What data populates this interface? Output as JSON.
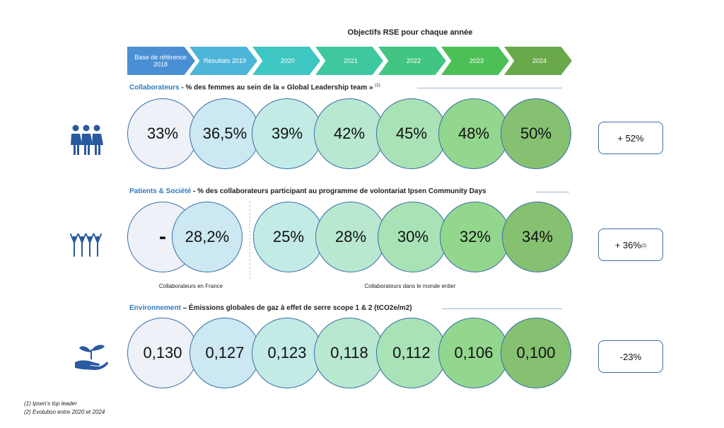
{
  "header": {
    "title": "Objectifs RSE pour chaque année",
    "chevrons": [
      {
        "label": "Base de référence 2018",
        "color": "#4a8fd4"
      },
      {
        "label": "Résultats 2019",
        "color": "#4cb5d8"
      },
      {
        "label": "2020",
        "color": "#3ec6c2"
      },
      {
        "label": "2021",
        "color": "#3fc79f"
      },
      {
        "label": "2022",
        "color": "#42c581"
      },
      {
        "label": "2023",
        "color": "#4cbf57"
      },
      {
        "label": "2024",
        "color": "#6aa94b"
      }
    ]
  },
  "sections": [
    {
      "category": "Collaborateurs",
      "title": " - % des femmes au sein de la « Global Leadership team » ",
      "note": "(1)",
      "icon": "women-group-icon",
      "values": [
        "33%",
        "36,5%",
        "39%",
        "42%",
        "45%",
        "48%",
        "50%"
      ],
      "result": "+ 52%",
      "result_note": ""
    },
    {
      "category": "Patients & Société",
      "title": " - % des collaborateurs participant au programme de volontariat Ipsen Community Days",
      "note": "",
      "icon": "people-raising-hands-icon",
      "values": [
        "-",
        "28,2%",
        "25%",
        "28%",
        "30%",
        "32%",
        "34%"
      ],
      "result": "+ 36%",
      "result_note": "(2)",
      "captions": [
        "Collaborateurs en France",
        "Collaborateurs dans le monde entier"
      ]
    },
    {
      "category": "Environnement",
      "title": " – Émissions globales de gaz à effet de serre scope 1 & 2 (tCO2e/m2)",
      "note": "",
      "icon": "hand-plant-icon",
      "values": [
        "0,130",
        "0,127",
        "0,123",
        "0,118",
        "0,112",
        "0,106",
        "0,100"
      ],
      "result": "-23%",
      "result_note": ""
    }
  ],
  "circle_colors": [
    "#eef1f8",
    "#cce8f2",
    "#c2ebe6",
    "#b8e8d0",
    "#a8e2b5",
    "#93d68e",
    "#85c171"
  ],
  "footnotes": [
    "(1)  Ipsen's top leader",
    "(2)  Evolution entre 2020 et 2024"
  ]
}
